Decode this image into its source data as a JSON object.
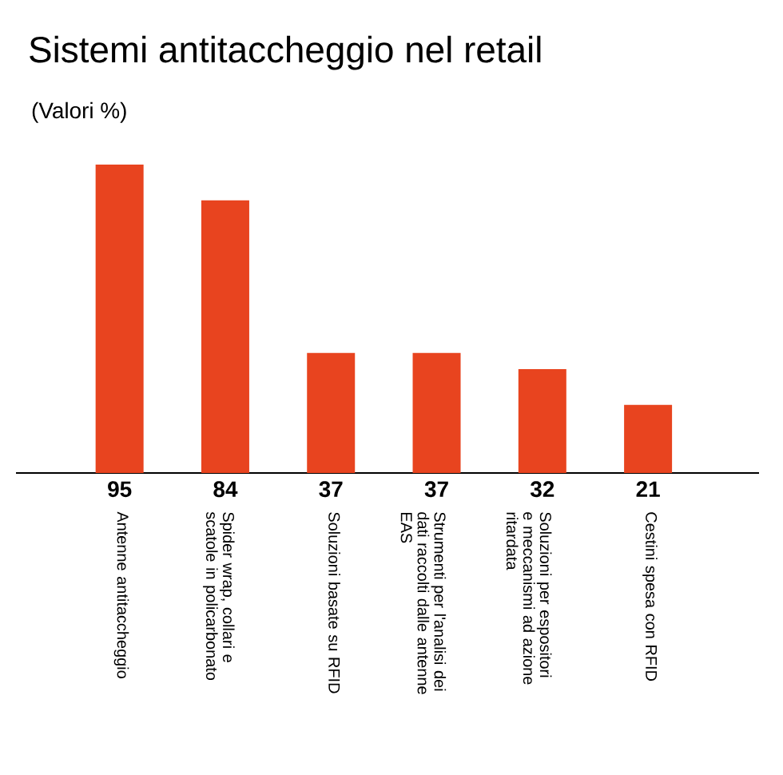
{
  "chart_data": {
    "type": "bar",
    "title": "Sistemi antitaccheggio nel retail",
    "subtitle": "(Valori %)",
    "categories": [
      "Antenne antitaccheggio",
      "Spider wrap, collari e scatole in policarbonato",
      "Soluzioni basate su RFID",
      "Strumenti per l'analisi dei dati raccolti dalle antenne EAS",
      "Soluzioni per espositori e meccanismi ad azione ritardata",
      "Cestini spesa con RFID"
    ],
    "values": [
      95,
      84,
      37,
      37,
      32,
      21
    ],
    "color": "#e8441f",
    "data_labels": true
  }
}
